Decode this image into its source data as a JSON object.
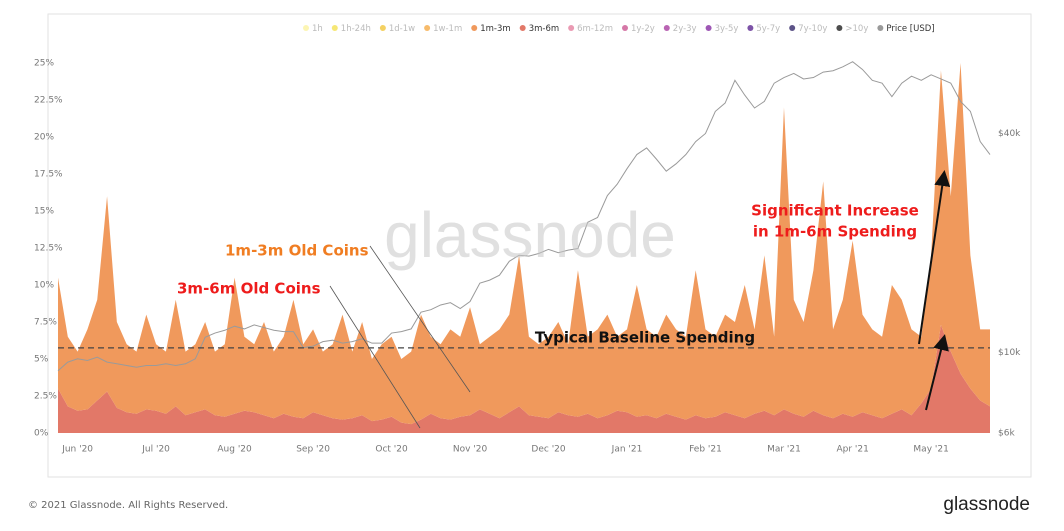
{
  "chart_data": {
    "type": "stacked-area",
    "watermark": "glassnode",
    "footer": "© 2021 Glassnode. All Rights Reserved.",
    "logo": "glassnode",
    "categories": [
      null,
      null,
      "Jun '20",
      null,
      null,
      null,
      null,
      null,
      null,
      null,
      "Jul '20",
      null,
      null,
      null,
      null,
      null,
      null,
      null,
      "Aug '20",
      null,
      null,
      null,
      null,
      null,
      null,
      null,
      "Sep '20",
      null,
      null,
      null,
      null,
      null,
      null,
      null,
      "Oct '20",
      null,
      null,
      null,
      null,
      null,
      null,
      null,
      "Nov '20",
      null,
      null,
      null,
      null,
      null,
      null,
      null,
      "Dec '20",
      null,
      null,
      null,
      null,
      null,
      null,
      null,
      "Jan '21",
      null,
      null,
      null,
      null,
      null,
      null,
      null,
      "Feb '21",
      null,
      null,
      null,
      null,
      null,
      null,
      null,
      "Mar '21",
      null,
      null,
      null,
      null,
      null,
      null,
      "Apr '21",
      null,
      null,
      null,
      null,
      null,
      null,
      null,
      "May '21",
      null,
      null,
      null,
      null,
      null,
      null
    ],
    "legend_inactive_before": [
      {
        "name": "1h",
        "color": "#fbf29a"
      },
      {
        "name": "1h-24h",
        "color": "#f3df47"
      },
      {
        "name": "1d-1w",
        "color": "#f0c12e"
      },
      {
        "name": "1w-1m",
        "color": "#f4a43a"
      }
    ],
    "legend_inactive_after": [
      {
        "name": "6m-12m",
        "color": "#e3789a"
      },
      {
        "name": "1y-2y",
        "color": "#c74b8a"
      },
      {
        "name": "2y-3y",
        "color": "#a2309a"
      },
      {
        "name": "3y-5y",
        "color": "#7e1f9c"
      },
      {
        "name": "5y-7y",
        "color": "#521a8a"
      },
      {
        "name": "7y-10y",
        "color": "#26195f"
      },
      {
        "name": ">10y",
        "color": "#111111"
      }
    ],
    "series": [
      {
        "name": "1m-3m",
        "color": "#f0995c",
        "values": [
          7.5,
          4.7,
          4.0,
          5.4,
          6.8,
          13.2,
          5.8,
          4.6,
          4.2,
          6.4,
          4.5,
          4.2,
          7.2,
          4.3,
          4.6,
          5.9,
          4.3,
          4.9,
          9.2,
          5.0,
          4.6,
          6.3,
          4.5,
          5.2,
          7.9,
          5.0,
          5.6,
          4.3,
          5.0,
          7.1,
          4.5,
          6.3,
          4.2,
          5.1,
          5.4,
          4.3,
          4.9,
          7.1,
          5.2,
          5.0,
          6.1,
          5.4,
          7.3,
          4.4,
          5.2,
          6.0,
          6.6,
          10.2,
          5.3,
          4.9,
          5.5,
          6.1,
          4.8,
          9.9,
          5.2,
          6.0,
          6.8,
          5.0,
          5.6,
          8.9,
          5.8,
          5.5,
          6.7,
          5.9,
          5.6,
          9.8,
          6.0,
          5.4,
          6.6,
          6.3,
          9.0,
          5.7,
          10.5,
          5.3,
          20.4,
          7.7,
          6.4,
          9.5,
          15.8,
          6.0,
          7.7,
          11.9,
          6.6,
          5.8,
          5.5,
          8.7,
          7.4,
          5.8,
          4.5,
          9.0,
          17.2,
          10.5,
          21.0,
          9.0,
          4.8,
          5.2
        ]
      },
      {
        "name": "3m-6m",
        "color": "#e27868",
        "values": [
          3.0,
          1.8,
          1.5,
          1.6,
          2.2,
          2.8,
          1.7,
          1.4,
          1.3,
          1.6,
          1.5,
          1.3,
          1.8,
          1.2,
          1.4,
          1.6,
          1.2,
          1.1,
          1.3,
          1.5,
          1.4,
          1.2,
          1.0,
          1.3,
          1.1,
          1.0,
          1.4,
          1.2,
          1.0,
          0.9,
          1.0,
          1.2,
          0.8,
          0.9,
          1.1,
          0.7,
          0.6,
          0.9,
          1.3,
          1.0,
          0.9,
          1.1,
          1.2,
          1.6,
          1.3,
          1.0,
          1.4,
          1.8,
          1.2,
          1.1,
          1.0,
          1.4,
          1.2,
          1.1,
          1.3,
          1.0,
          1.2,
          1.5,
          1.4,
          1.1,
          1.2,
          1.0,
          1.3,
          1.1,
          0.9,
          1.2,
          1.0,
          1.1,
          1.4,
          1.2,
          1.0,
          1.3,
          1.5,
          1.2,
          1.6,
          1.3,
          1.1,
          1.5,
          1.2,
          1.0,
          1.3,
          1.1,
          1.4,
          1.2,
          1.0,
          1.3,
          1.6,
          1.2,
          2.0,
          3.0,
          7.3,
          5.5,
          4.0,
          3.0,
          2.2,
          1.8
        ]
      },
      {
        "name": "Price [USD]",
        "color": "#9a9a9a",
        "axis": "y2",
        "type": "line",
        "values": [
          8900,
          9400,
          9600,
          9500,
          9700,
          9400,
          9300,
          9200,
          9100,
          9200,
          9200,
          9300,
          9200,
          9300,
          9600,
          11000,
          11300,
          11500,
          11800,
          11600,
          11900,
          11700,
          11500,
          11400,
          11400,
          10300,
          10400,
          10700,
          10800,
          10600,
          10700,
          10900,
          10600,
          10600,
          11300,
          11400,
          11600,
          12900,
          13100,
          13500,
          13700,
          13200,
          13800,
          15500,
          15800,
          16300,
          17800,
          18500,
          18400,
          18700,
          19200,
          18800,
          19100,
          19300,
          22800,
          23500,
          27000,
          29000,
          32000,
          35000,
          36500,
          34000,
          31500,
          33000,
          35000,
          38000,
          40000,
          46000,
          48500,
          56000,
          51000,
          47000,
          49000,
          55000,
          57000,
          58500,
          56500,
          57000,
          59000,
          59500,
          61000,
          63000,
          60000,
          56000,
          55000,
          50500,
          55000,
          57500,
          56000,
          58000,
          56500,
          55000,
          49000,
          46000,
          38000,
          35000
        ]
      }
    ],
    "ylim": [
      0,
      25
    ],
    "yticks": [
      {
        "value": 0,
        "label": "0%"
      },
      {
        "value": 2.5,
        "label": "2.5%"
      },
      {
        "value": 5,
        "label": "5%"
      },
      {
        "value": 7.5,
        "label": "7.5%"
      },
      {
        "value": 10,
        "label": "10%"
      },
      {
        "value": 12.5,
        "label": "12.5%"
      },
      {
        "value": 15,
        "label": "15%"
      },
      {
        "value": 17.5,
        "label": "17.5%"
      },
      {
        "value": 20,
        "label": "20%"
      },
      {
        "value": 22.5,
        "label": "22.5%"
      },
      {
        "value": 25,
        "label": "25%"
      }
    ],
    "y2lim": [
      6000,
      62500
    ],
    "y2ticks": [
      {
        "value": 6000,
        "label": "$6k"
      },
      {
        "value": 10000,
        "label": "$10k"
      },
      {
        "value": 40000,
        "label": "$40k"
      }
    ],
    "y2_log": true,
    "baseline": {
      "label": "Typical Baseline Spending",
      "value": 5.75
    },
    "annotations": [
      {
        "text": "1m-3m Old Coins",
        "color": "#f07d22"
      },
      {
        "text": "3m-6m Old Coins",
        "color": "#ee1c1c"
      },
      {
        "text": "Significant Increase",
        "color": "#ee1c1c"
      },
      {
        "text": "in 1m-6m Spending",
        "color": "#ee1c1c"
      }
    ]
  }
}
